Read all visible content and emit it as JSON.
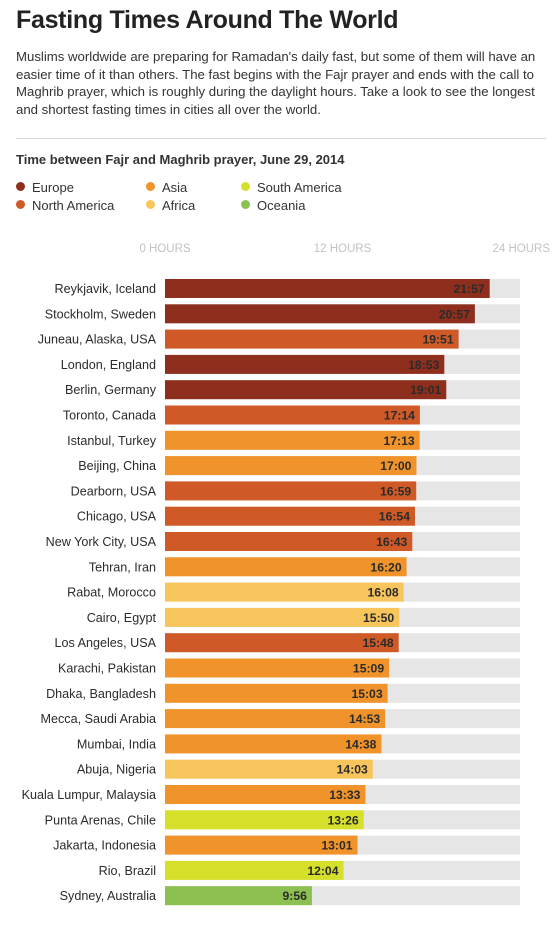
{
  "header": {
    "title": "Fasting Times Around The World",
    "intro": "Muslims worldwide are preparing for Ramadan's daily fast, but some of them will have an easier time of it than others. The fast begins with the Fajr prayer and ends with the call to Maghrib prayer, which is roughly during the daylight hours. Take a look to see the longest and shortest fasting times in cities all over the world.",
    "subtitle": "Time between Fajr and Maghrib prayer, June 29, 2014"
  },
  "legend": [
    {
      "label": "Europe",
      "color": "#8e2f1d"
    },
    {
      "label": "North America",
      "color": "#cf5a27"
    },
    {
      "label": "Asia",
      "color": "#f0932a"
    },
    {
      "label": "Africa",
      "color": "#f7c55c"
    },
    {
      "label": "South America",
      "color": "#d6e02b"
    },
    {
      "label": "Oceania",
      "color": "#8cc152"
    }
  ],
  "chart_data": {
    "type": "bar",
    "orientation": "horizontal",
    "title": "Time between Fajr and Maghrib prayer, June 29, 2014",
    "xlim": [
      0,
      24
    ],
    "ticks": [
      {
        "value": 0,
        "label": "0 HOURS"
      },
      {
        "value": 12,
        "label": "12 HOURS"
      },
      {
        "value": 24,
        "label": "24 HOURS"
      }
    ],
    "track_color": "#e6e6e6",
    "value_color_light": "#ffffff",
    "value_color_dark": "#2b2b2b",
    "bars": [
      {
        "city": "Reykjavik, Iceland",
        "duration": "21:57",
        "region": "Europe"
      },
      {
        "city": "Stockholm, Sweden",
        "duration": "20:57",
        "region": "Europe"
      },
      {
        "city": "Juneau, Alaska, USA",
        "duration": "19:51",
        "region": "North America"
      },
      {
        "city": "London, England",
        "duration": "18:53",
        "region": "Europe"
      },
      {
        "city": "Berlin, Germany",
        "duration": "19:01",
        "region": "Europe"
      },
      {
        "city": "Toronto, Canada",
        "duration": "17:14",
        "region": "North America"
      },
      {
        "city": "Istanbul, Turkey",
        "duration": "17:13",
        "region": "Asia"
      },
      {
        "city": "Beijing, China",
        "duration": "17:00",
        "region": "Asia"
      },
      {
        "city": "Dearborn, USA",
        "duration": "16:59",
        "region": "North America"
      },
      {
        "city": "Chicago, USA",
        "duration": "16:54",
        "region": "North America"
      },
      {
        "city": "New York City, USA",
        "duration": "16:43",
        "region": "North America"
      },
      {
        "city": "Tehran, Iran",
        "duration": "16:20",
        "region": "Asia"
      },
      {
        "city": "Rabat, Morocco",
        "duration": "16:08",
        "region": "Africa"
      },
      {
        "city": "Cairo, Egypt",
        "duration": "15:50",
        "region": "Africa"
      },
      {
        "city": "Los Angeles, USA",
        "duration": "15:48",
        "region": "North America"
      },
      {
        "city": "Karachi, Pakistan",
        "duration": "15:09",
        "region": "Asia"
      },
      {
        "city": "Dhaka, Bangladesh",
        "duration": "15:03",
        "region": "Asia"
      },
      {
        "city": "Mecca, Saudi Arabia",
        "duration": "14:53",
        "region": "Asia"
      },
      {
        "city": "Mumbai, India",
        "duration": "14:38",
        "region": "Asia"
      },
      {
        "city": "Abuja, Nigeria",
        "duration": "14:03",
        "region": "Africa"
      },
      {
        "city": "Kuala Lumpur, Malaysia",
        "duration": "13:33",
        "region": "Asia"
      },
      {
        "city": "Punta Arenas, Chile",
        "duration": "13:26",
        "region": "South America"
      },
      {
        "city": "Jakarta, Indonesia",
        "duration": "13:01",
        "region": "Asia"
      },
      {
        "city": "Rio, Brazil",
        "duration": "12:04",
        "region": "South America"
      },
      {
        "city": "Sydney, Australia",
        "duration": "9:56",
        "region": "Oceania"
      }
    ]
  }
}
